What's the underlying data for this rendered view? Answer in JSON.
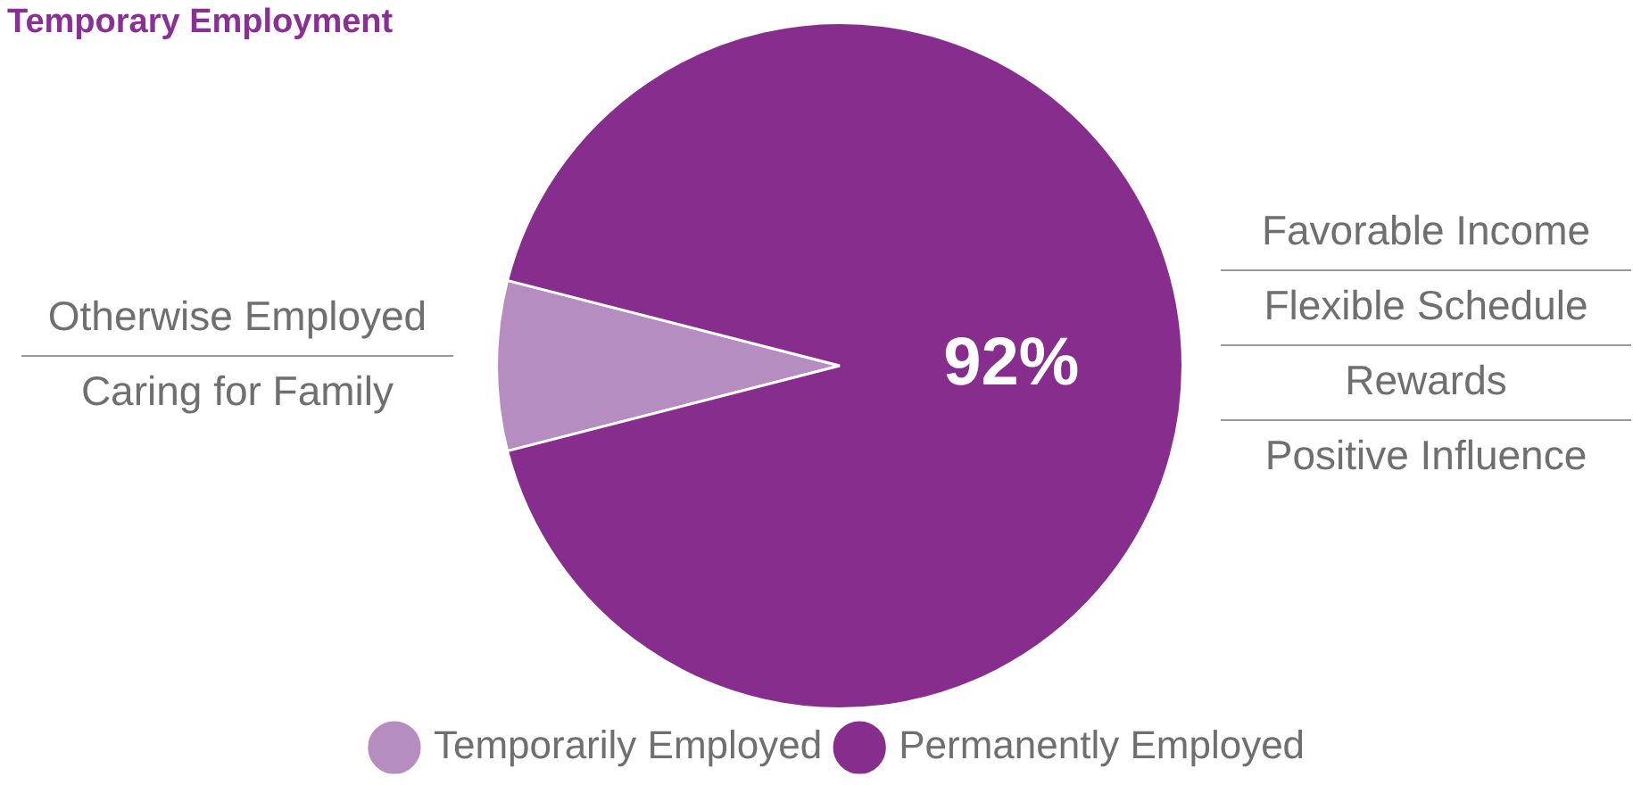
{
  "chart_data": {
    "type": "pie",
    "title": "Temporary Employment",
    "categories": [
      "Temporarily Employed",
      "Permanently Employed"
    ],
    "values": [
      8,
      92
    ],
    "colors": [
      "#b58dc0",
      "#862d8e"
    ],
    "value_labels": [
      null,
      "92%"
    ],
    "legend": "bottom",
    "annotations": [
      "Otherwise Employed",
      "Caring for Family",
      "Favorable Income",
      "Flexible Schedule",
      "Rewards",
      "Positive Influence"
    ]
  }
}
